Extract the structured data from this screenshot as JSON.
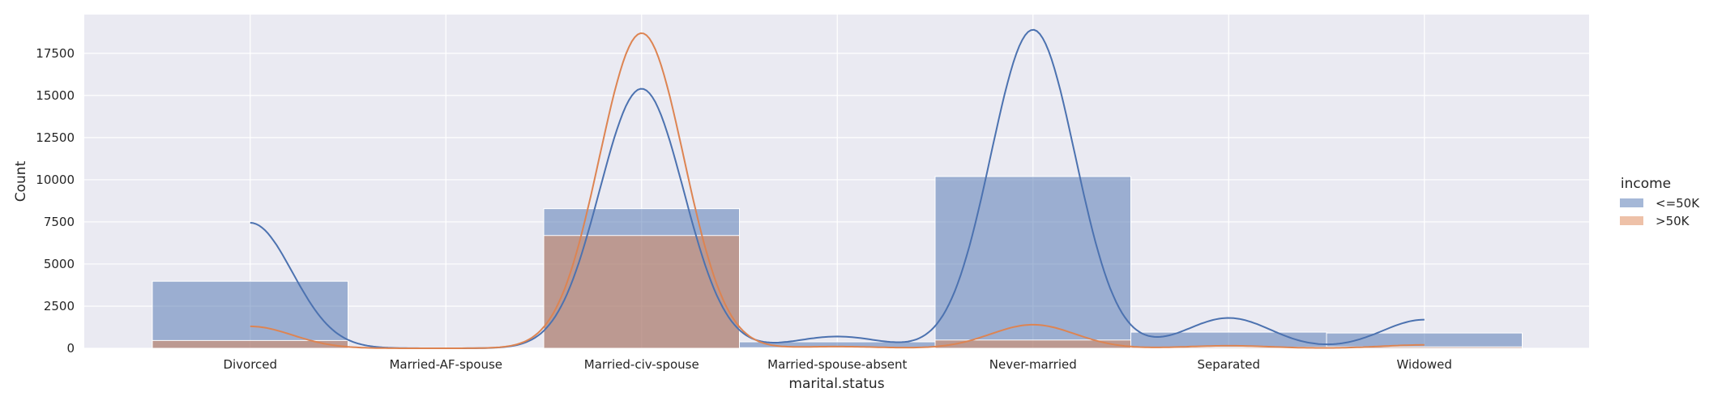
{
  "chart_data": {
    "type": "bar",
    "xlabel": "marital.status",
    "ylabel": "Count",
    "ylim": [
      0,
      20000
    ],
    "yticks": [
      0,
      2500,
      5000,
      7500,
      10000,
      12500,
      15000,
      17500
    ],
    "grid": true,
    "legend_position": "right",
    "legend_title": "income",
    "categories": [
      "Divorced",
      "Married-AF-spouse",
      "Married-civ-spouse",
      "Married-spouse-absent",
      "Never-married",
      "Separated",
      "Widowed"
    ],
    "series": [
      {
        "name": "<=50K",
        "color": "#4c72b0",
        "values": [
          3980,
          13,
          8284,
          384,
          10192,
          959,
          908
        ],
        "kde": [
          7450,
          0,
          15400,
          700,
          18900,
          1800,
          1700
        ]
      },
      {
        "name": ">50K",
        "color": "#dd8452",
        "values": [
          463,
          10,
          6692,
          34,
          491,
          66,
          85
        ],
        "kde": [
          1300,
          0,
          18700,
          100,
          1400,
          150,
          200
        ]
      }
    ]
  }
}
